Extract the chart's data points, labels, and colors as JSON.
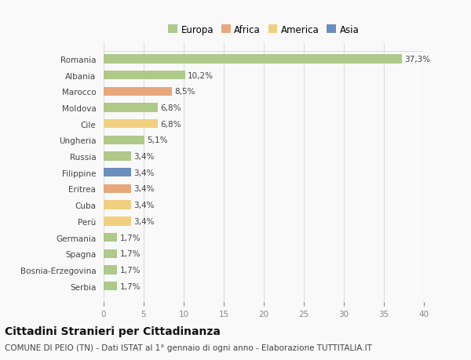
{
  "countries": [
    "Romania",
    "Albania",
    "Marocco",
    "Moldova",
    "Cile",
    "Ungheria",
    "Russia",
    "Filippine",
    "Eritrea",
    "Cuba",
    "Perù",
    "Germania",
    "Spagna",
    "Bosnia-Erzegovina",
    "Serbia"
  ],
  "values": [
    37.3,
    10.2,
    8.5,
    6.8,
    6.8,
    5.1,
    3.4,
    3.4,
    3.4,
    3.4,
    3.4,
    1.7,
    1.7,
    1.7,
    1.7
  ],
  "labels": [
    "37,3%",
    "10,2%",
    "8,5%",
    "6,8%",
    "6,8%",
    "5,1%",
    "3,4%",
    "3,4%",
    "3,4%",
    "3,4%",
    "3,4%",
    "1,7%",
    "1,7%",
    "1,7%",
    "1,7%"
  ],
  "colors": [
    "#aec98a",
    "#aec98a",
    "#e8a87c",
    "#aec98a",
    "#f0d080",
    "#aec98a",
    "#aec98a",
    "#6a8fbf",
    "#e8a87c",
    "#f0d080",
    "#f0d080",
    "#aec98a",
    "#aec98a",
    "#aec98a",
    "#aec98a"
  ],
  "continent_colors": {
    "Europa": "#aec98a",
    "Africa": "#e8a87c",
    "America": "#f0d080",
    "Asia": "#6a8fbf"
  },
  "xlim": [
    0,
    40
  ],
  "xticks": [
    0,
    5,
    10,
    15,
    20,
    25,
    30,
    35,
    40
  ],
  "title": "Cittadini Stranieri per Cittadinanza",
  "subtitle": "COMUNE DI PEIO (TN) - Dati ISTAT al 1° gennaio di ogni anno - Elaborazione TUTTITALIA.IT",
  "bg_color": "#f9f9f9",
  "bar_height": 0.55,
  "label_fontsize": 7.5,
  "tick_fontsize": 7.5,
  "title_fontsize": 10,
  "subtitle_fontsize": 7.5
}
